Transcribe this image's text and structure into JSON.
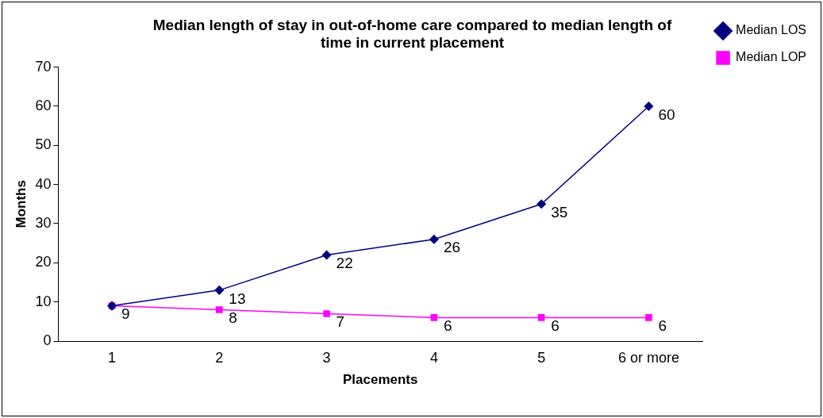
{
  "chart_data": {
    "type": "line",
    "title": "Median length of stay in out-of-home care compared to median length of time in current placement",
    "xlabel": "Placements",
    "ylabel": "Months",
    "categories": [
      "1",
      "2",
      "3",
      "4",
      "5",
      "6 or more"
    ],
    "series": [
      {
        "name": "Median LOS",
        "color": "#000080",
        "marker": "diamond",
        "values": [
          9,
          13,
          22,
          26,
          35,
          60
        ],
        "value_labels": [
          null,
          "13",
          "22",
          "26",
          "35",
          "60"
        ]
      },
      {
        "name": "Median LOP",
        "color": "#ff00ff",
        "marker": "square",
        "values": [
          9,
          8,
          7,
          6,
          6,
          6
        ],
        "value_labels": [
          "9",
          "8",
          "7",
          "6",
          "6",
          "6"
        ]
      }
    ],
    "ylim": [
      0,
      70
    ],
    "yticks": [
      0,
      10,
      20,
      30,
      40,
      50,
      60,
      70
    ],
    "grid": false,
    "legend": "right",
    "line_style": "solid"
  }
}
